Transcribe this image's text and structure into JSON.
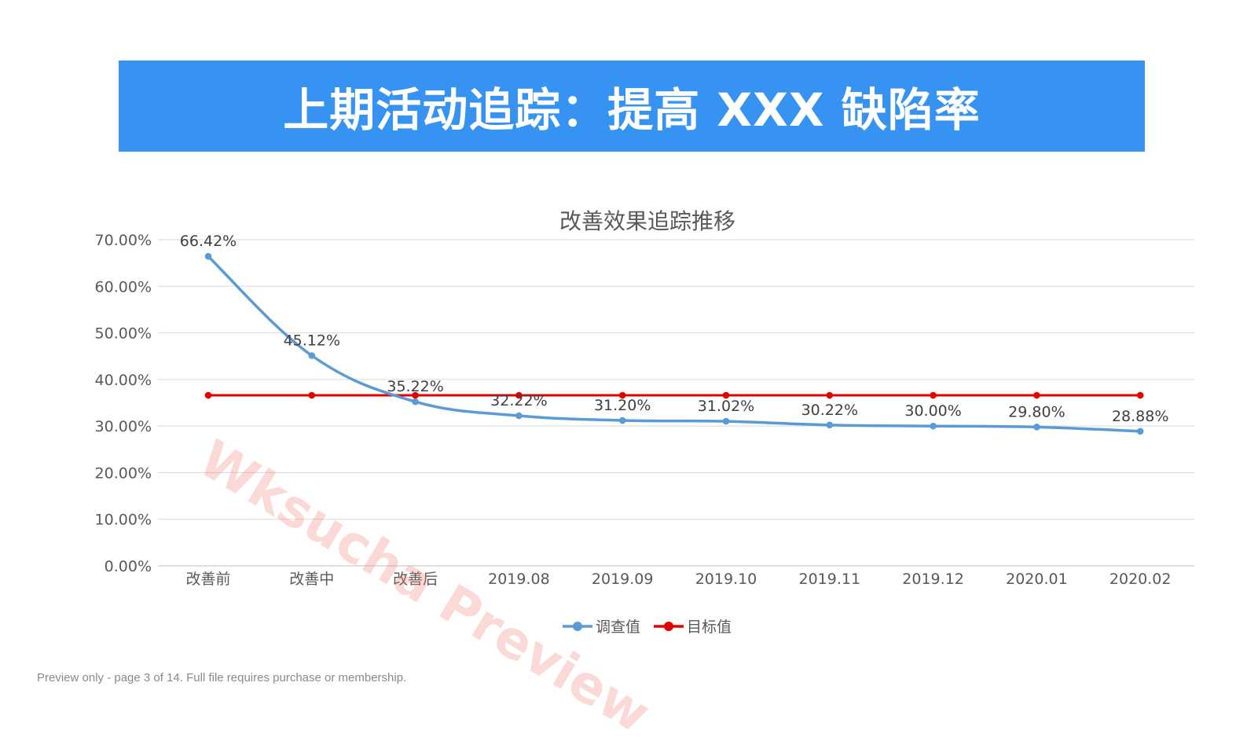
{
  "slide": {
    "title": "上期活动追踪：提高 XXX 缺陷率",
    "watermark": "Wksucha Preview",
    "footer": "Preview only - page 3 of 14. Full file requires purchase or membership."
  },
  "chart_data": {
    "type": "line",
    "title": "改善效果追踪推移",
    "xlabel": "",
    "ylabel": "",
    "categories": [
      "改善前",
      "改善中",
      "改善后",
      "2019.08",
      "2019.09",
      "2019.10",
      "2019.11",
      "2019.12",
      "2020.01",
      "2020.02"
    ],
    "ylim": [
      0,
      0.7
    ],
    "yticks": [
      0,
      0.1,
      0.2,
      0.3,
      0.4,
      0.5,
      0.6,
      0.7
    ],
    "ytick_labels": [
      "0.00%",
      "10.00%",
      "20.00%",
      "30.00%",
      "40.00%",
      "50.00%",
      "60.00%",
      "70.00%"
    ],
    "grid": true,
    "legend_position": "bottom",
    "series": [
      {
        "name": "调查值",
        "color": "#5b9bd5",
        "values": [
          0.6642,
          0.4512,
          0.3522,
          0.3222,
          0.312,
          0.3102,
          0.3022,
          0.3,
          0.298,
          0.2888
        ],
        "data_labels": [
          "66.42%",
          "45.12%",
          "35.22%",
          "32.22%",
          "31.20%",
          "31.02%",
          "30.22%",
          "30.00%",
          "29.80%",
          "28.88%"
        ],
        "smooth": true
      },
      {
        "name": "目标值",
        "color": "#e60000",
        "values": [
          0.366,
          0.366,
          0.366,
          0.366,
          0.366,
          0.366,
          0.366,
          0.366,
          0.366,
          0.366
        ],
        "smooth": false
      }
    ]
  }
}
